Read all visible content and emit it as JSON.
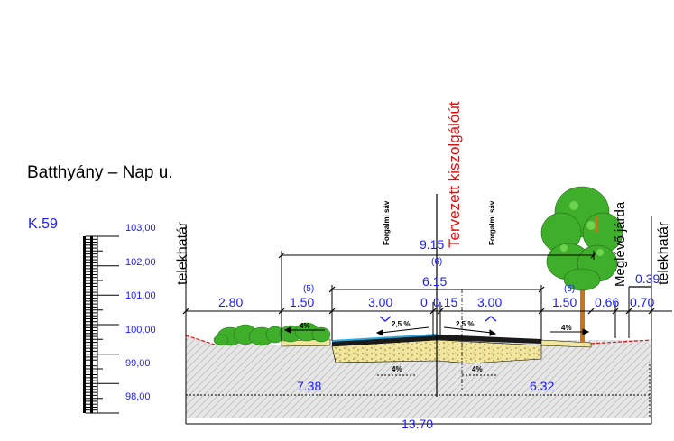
{
  "title": "Batthyány – Nap u.",
  "section_code": "K.59",
  "vertical_labels": {
    "left_boundary": "telekhatár",
    "right_boundary": "telekhatár",
    "planned_road": "Tervezett kiszolgálóút",
    "existing_sidewalk": "Meglévő járda",
    "lane_left": "Forgalmi sáv",
    "lane_right": "Forgalmi sáv"
  },
  "elevation_scale": [
    "103,00",
    "102,00",
    "101,00",
    "100,00",
    "99,00",
    "98,00"
  ],
  "dimensions": {
    "top_width": "9.15",
    "top_width_note": "(6)",
    "roadway_width": "6.15",
    "left_verge": "2.80",
    "left_shoulder": "1.50",
    "left_shoulder_note": "(5)",
    "left_lane": "3.00",
    "centre": "0.15",
    "centre_prefix": "0",
    "right_lane": "3.00",
    "right_shoulder": "1.50",
    "right_shoulder_note": "(5)",
    "sidewalk_gap": "0.66",
    "sidewalk": "0.70",
    "right_edge": "0.39",
    "left_total": "7.38",
    "right_total": "6.32",
    "total_width": "13.70"
  },
  "slopes": {
    "left_shoulder": "4%",
    "left_lane": "2,5 %",
    "right_lane": "2,5 %",
    "right_shoulder": "4%",
    "sub_left": "4%",
    "sub_right": "4%"
  },
  "colors": {
    "dimension_text": "#1a1aff",
    "planned_label": "#e01010",
    "asphalt": "#1a1a1a",
    "base_course": "#f3e69c",
    "ground_hatch": "#d8d8d8",
    "shrub": "#3fae2a",
    "tree_trunk": "#c8741a"
  },
  "icons": [
    "tree-icon",
    "shrub-icon"
  ]
}
